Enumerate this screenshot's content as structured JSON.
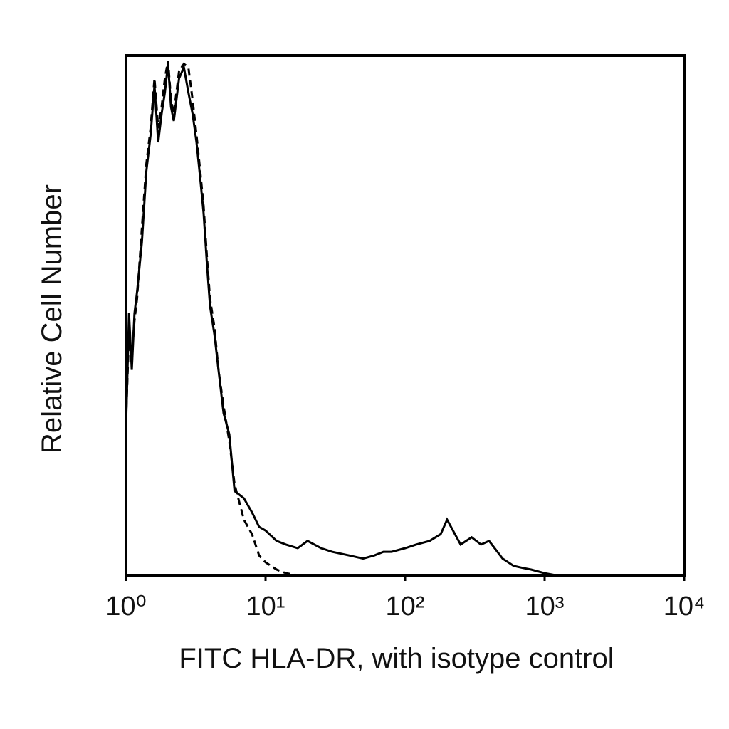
{
  "chart_data": {
    "type": "line",
    "x_label": "FITC HLA-DR, with isotype control",
    "y_label": "Relative Cell Number",
    "xscale": "log",
    "xlim": [
      1,
      10000
    ],
    "xticks": [
      {
        "value": 1,
        "label": "10⁰"
      },
      {
        "value": 10,
        "label": "10¹"
      },
      {
        "value": 100,
        "label": "10²"
      },
      {
        "value": 1000,
        "label": "10³"
      },
      {
        "value": 10000,
        "label": "10⁴"
      }
    ],
    "ylim": [
      0,
      100
    ],
    "x": [
      1.0,
      1.05,
      1.1,
      1.15,
      1.2,
      1.3,
      1.4,
      1.5,
      1.6,
      1.7,
      1.8,
      1.9,
      2.0,
      2.1,
      2.2,
      2.4,
      2.6,
      2.8,
      3.0,
      3.2,
      3.4,
      3.6,
      3.8,
      4.0,
      4.3,
      4.6,
      5.0,
      5.5,
      6,
      7,
      8,
      9,
      10,
      12,
      14,
      17,
      20,
      25,
      30,
      40,
      50,
      60,
      70,
      80,
      100,
      120,
      150,
      180,
      200,
      250,
      300,
      350,
      400,
      500,
      600,
      700,
      800,
      1000,
      1200
    ],
    "series": [
      {
        "color": "#000000",
        "dash": false,
        "values": [
          28.5,
          50.4,
          39.5,
          50.4,
          54.5,
          64.1,
          77.8,
          84.7,
          94.2,
          83.3,
          88.8,
          92.9,
          98.4,
          90.1,
          87.4,
          95.6,
          97.7,
          92.9,
          88.8,
          83.3,
          76.4,
          69.6,
          60,
          51.8,
          46.3,
          39.5,
          31.2,
          27.1,
          16.2,
          14.8,
          12.1,
          9.3,
          8.6,
          6.6,
          5.9,
          5.2,
          6.6,
          5.2,
          4.5,
          3.8,
          3.2,
          3.8,
          4.5,
          4.5,
          5.2,
          5.9,
          6.6,
          7.9,
          10.7,
          5.9,
          7.3,
          5.9,
          6.6,
          3.2,
          1.8,
          1.4,
          1.1,
          0.4,
          0
        ]
      },
      {
        "color": "#000000",
        "dash": true,
        "values": [
          30,
          46.3,
          42.2,
          49,
          53.2,
          66.8,
          79.2,
          86,
          95.6,
          86,
          90.1,
          95.6,
          99,
          91.5,
          88.8,
          97,
          98.4,
          97.7,
          91.5,
          84.7,
          77.8,
          71,
          61.4,
          53.2,
          47.7,
          39.5,
          32.6,
          25.8,
          17.5,
          10.7,
          7.9,
          3.8,
          2.5,
          1.1,
          0.4,
          0,
          0,
          0,
          null,
          null,
          null,
          null,
          null,
          null,
          null,
          null,
          null,
          null,
          null,
          null,
          null,
          null,
          null,
          null,
          null,
          null,
          null,
          null,
          null
        ]
      }
    ]
  }
}
